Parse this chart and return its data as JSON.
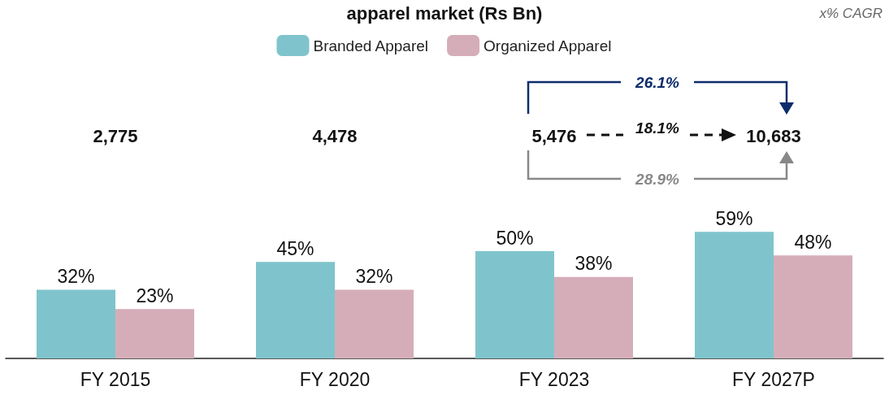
{
  "chart_data": {
    "type": "bar",
    "title": "apparel market (Rs Bn)",
    "categories": [
      "FY 2015",
      "FY 2020",
      "FY 2023",
      "FY 2027P"
    ],
    "series": [
      {
        "name": "Branded Apparel",
        "color": "#7fc4cc",
        "values": [
          32,
          45,
          50,
          59
        ],
        "value_labels": [
          "32%",
          "45%",
          "50%",
          "59%"
        ]
      },
      {
        "name": "Organized Apparel",
        "color": "#d5adb8",
        "values": [
          23,
          32,
          38,
          48
        ],
        "value_labels": [
          "23%",
          "32%",
          "38%",
          "48%"
        ]
      }
    ],
    "legend": "top",
    "annotations": [
      "x% CAGR",
      "2,775",
      "4,478",
      "5,476",
      "10,683",
      "26.1%",
      "18.1%",
      "28.9%"
    ]
  }
}
